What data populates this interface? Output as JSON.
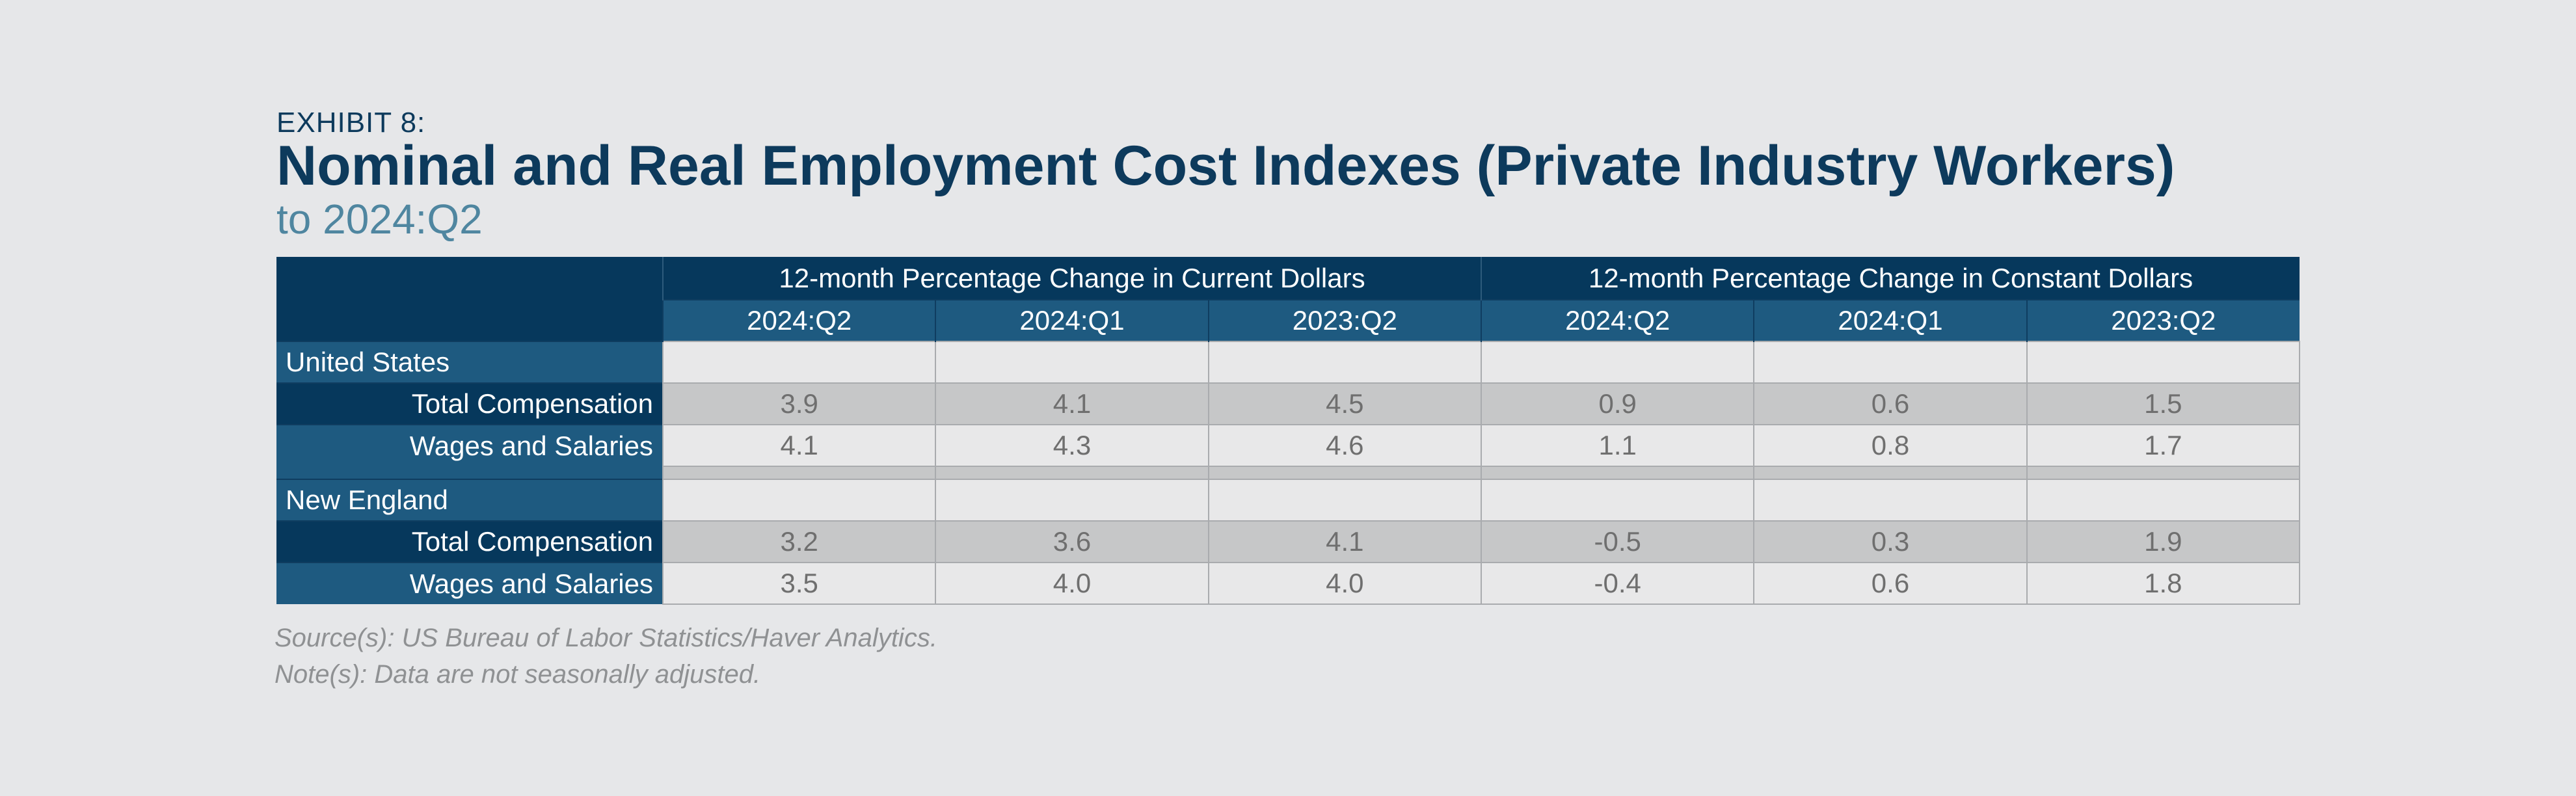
{
  "header": {
    "exhibit": "EXHIBIT 8:",
    "title": "Nominal and Real Employment Cost Indexes (Private Industry Workers)",
    "subtitle": "to 2024:Q2"
  },
  "table": {
    "groups": [
      "12-month Percentage Change in Current Dollars",
      "12-month Percentage Change in Constant Dollars"
    ],
    "columns": [
      "2024:Q2",
      "2024:Q1",
      "2023:Q2",
      "2024:Q2",
      "2024:Q1",
      "2023:Q2"
    ],
    "sections": [
      {
        "region": "United States",
        "rows": [
          {
            "label": "Total Compensation",
            "values": [
              "3.9",
              "4.1",
              "4.5",
              "0.9",
              "0.6",
              "1.5"
            ]
          },
          {
            "label": "Wages and Salaries",
            "values": [
              "4.1",
              "4.3",
              "4.6",
              "1.1",
              "0.8",
              "1.7"
            ]
          }
        ]
      },
      {
        "region": "New England",
        "rows": [
          {
            "label": "Total Compensation",
            "values": [
              "3.2",
              "3.6",
              "4.1",
              "-0.5",
              "0.3",
              "1.9"
            ]
          },
          {
            "label": "Wages and Salaries",
            "values": [
              "3.5",
              "4.0",
              "4.0",
              "-0.4",
              "0.6",
              "1.8"
            ]
          }
        ]
      }
    ]
  },
  "footer": {
    "source": "Source(s): US Bureau of Labor Statistics/Haver Analytics.",
    "note": "Note(s): Data are not seasonally adjusted."
  }
}
